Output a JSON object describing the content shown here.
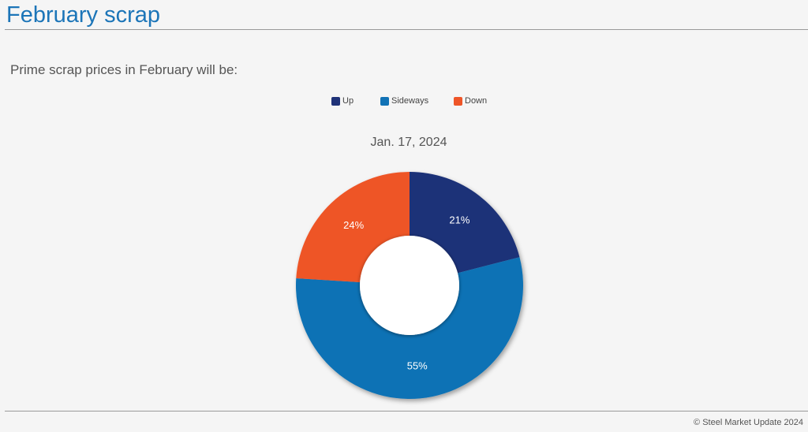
{
  "header": {
    "title": "February scrap"
  },
  "question": "Prime scrap prices in February will be:",
  "footer": {
    "copyright": "© Steel Market Update 2024"
  },
  "chart_data": {
    "type": "pie",
    "subtitle": "Jan. 17, 2024",
    "donut": true,
    "legend_position": "top",
    "categories": [
      "Up",
      "Sideways",
      "Down"
    ],
    "values": [
      21,
      55,
      24
    ],
    "value_labels": [
      "21%",
      "55%",
      "24%"
    ],
    "colors": [
      "#1f3278",
      "#1172b5",
      "#ee5528"
    ]
  }
}
